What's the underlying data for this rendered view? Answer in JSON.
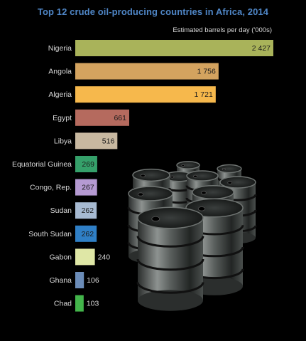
{
  "chart_data": {
    "type": "bar",
    "orientation": "horizontal",
    "title": "Top 12 crude oil-producing countries in Africa, 2014",
    "unit_label": "Estimated barrels per day ('000s)",
    "categories": [
      "Nigeria",
      "Angola",
      "Algeria",
      "Egypt",
      "Libya",
      "Equatorial Guinea",
      "Congo, Rep.",
      "Sudan",
      "South Sudan",
      "Gabon",
      "Ghana",
      "Chad"
    ],
    "values": [
      2427,
      1756,
      1721,
      661,
      516,
      269,
      267,
      262,
      262,
      240,
      106,
      103
    ],
    "value_labels": [
      "2 427",
      "1 756",
      "1 721",
      "661",
      "516",
      "269",
      "267",
      "262",
      "262",
      "240",
      "106",
      "103"
    ],
    "bar_colors": [
      "#a9b35a",
      "#d4a35f",
      "#f6b84c",
      "#b56a5e",
      "#c8b8a0",
      "#35a06a",
      "#b59ad2",
      "#a7bad2",
      "#2f7fc6",
      "#dfe7a6",
      "#6b8cb8",
      "#43b54b"
    ],
    "grid": false,
    "legend": "none"
  },
  "colors": {
    "background": "#000000",
    "title": "#4f86c6",
    "labels": "#d9d9d9",
    "value_text": "#1a1a1a"
  },
  "decoration": {
    "icon": "oil-barrels-illustration"
  }
}
